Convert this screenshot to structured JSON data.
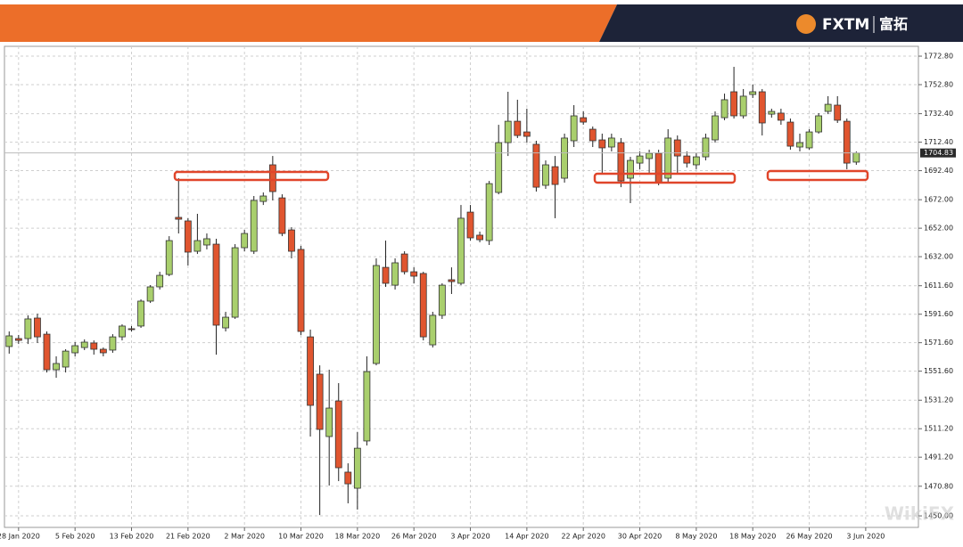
{
  "header": {
    "brand": "FXTM",
    "brand_cn": "富拓"
  },
  "watermark": "WikiFX",
  "chart_data": {
    "type": "candlestick",
    "up_color": "#a9cf6d",
    "down_color": "#e0552f",
    "grid": true,
    "xlim": [
      -0.5,
      96.6
    ],
    "ylim": [
      1441.9,
      1779.7
    ],
    "xticks": [
      {
        "value": 1,
        "label": "28 Jan 2020"
      },
      {
        "value": 7,
        "label": "5 Feb 2020"
      },
      {
        "value": 13,
        "label": "13 Feb 2020"
      },
      {
        "value": 19,
        "label": "21 Feb 2020"
      },
      {
        "value": 25,
        "label": "2 Mar 2020"
      },
      {
        "value": 31,
        "label": "10 Mar 2020"
      },
      {
        "value": 37,
        "label": "18 Mar 2020"
      },
      {
        "value": 43,
        "label": "26 Mar 2020"
      },
      {
        "value": 49,
        "label": "3 Apr 2020"
      },
      {
        "value": 55,
        "label": "14 Apr 2020"
      },
      {
        "value": 61,
        "label": "22 Apr 2020"
      },
      {
        "value": 67,
        "label": "30 Apr 2020"
      },
      {
        "value": 73,
        "label": "8 May 2020"
      },
      {
        "value": 79,
        "label": "18 May 2020"
      },
      {
        "value": 85,
        "label": "26 May 2020"
      },
      {
        "value": 91,
        "label": "3 Jun 2020"
      }
    ],
    "yticks": [
      {
        "value": 1772.8,
        "label": "1772.80"
      },
      {
        "value": 1752.8,
        "label": "1752.80"
      },
      {
        "value": 1732.4,
        "label": "1732.40"
      },
      {
        "value": 1712.4,
        "label": "1712.40"
      },
      {
        "value": 1692.4,
        "label": "1692.40"
      },
      {
        "value": 1672,
        "label": "1672.00"
      },
      {
        "value": 1652,
        "label": "1652.00"
      },
      {
        "value": 1632,
        "label": "1632.00"
      },
      {
        "value": 1611.6,
        "label": "1611.60"
      },
      {
        "value": 1591.6,
        "label": "1591.60"
      },
      {
        "value": 1571.6,
        "label": "1571.60"
      },
      {
        "value": 1551.6,
        "label": "1551.60"
      },
      {
        "value": 1531.2,
        "label": "1531.20"
      },
      {
        "value": 1511.2,
        "label": "1511.20"
      },
      {
        "value": 1491.2,
        "label": "1491.20"
      },
      {
        "value": 1470.8,
        "label": "1470.80"
      },
      {
        "value": 1450,
        "label": "1450.00"
      }
    ],
    "open": [
      1568.9,
      1574.5,
      1574.5,
      1588.9,
      1577.6,
      1552.6,
      1554.5,
      1564.5,
      1568.2,
      1571.4,
      1567.0,
      1566.4,
      1575.7,
      1581.4,
      1583.3,
      1600.8,
      1610.8,
      1619.5,
      1659.6,
      1657.1,
      1635.8,
      1640.2,
      1640.8,
      1582.0,
      1589.5,
      1638.3,
      1635.8,
      1670.8,
      1696.5,
      1673.3,
      1650.8,
      1637.1,
      1575.7,
      1549.5,
      1505.7,
      1530.7,
      1480.7,
      1469.4,
      1502.6,
      1557.0,
      1624.5,
      1612.0,
      1633.9,
      1621.4,
      1620.2,
      1570.1,
      1590.8,
      1615.8,
      1613.3,
      1663.3,
      1647.1,
      1643.3,
      1677.1,
      1712.1,
      1727.1,
      1719.6,
      1710.9,
      1682.1,
      1695.2,
      1687.1,
      1713.4,
      1729.6,
      1721.5,
      1714.0,
      1709.0,
      1712.1,
      1687.1,
      1697.7,
      1700.9,
      1704.6,
      1687.1,
      1714.0,
      1702.7,
      1696.5,
      1702.1,
      1714.0,
      1729.6,
      1747.8,
      1730.9,
      1745.9,
      1747.8,
      1732.1,
      1732.8,
      1726.5,
      1709.0,
      1708.4,
      1719.6,
      1734.0,
      1738.4,
      1727.1,
      1698.4
    ],
    "high": [
      1579.5,
      1577.0,
      1590.8,
      1592.0,
      1579.5,
      1562.0,
      1567.0,
      1572.0,
      1573.9,
      1573.2,
      1568.2,
      1577.6,
      1584.5,
      1583.3,
      1602.0,
      1612.0,
      1621.4,
      1646.4,
      1687.1,
      1659.0,
      1662.1,
      1648.3,
      1644.6,
      1593.3,
      1640.8,
      1650.8,
      1674.6,
      1677.1,
      1702.7,
      1675.8,
      1652.7,
      1639.6,
      1580.8,
      1555.7,
      1552.6,
      1543.2,
      1486.9,
      1508.8,
      1562.0,
      1630.8,
      1643.3,
      1630.8,
      1635.8,
      1624.5,
      1621.4,
      1593.3,
      1613.3,
      1624.5,
      1668.3,
      1668.3,
      1649.6,
      1685.2,
      1724.6,
      1747.8,
      1742.2,
      1735.9,
      1713.4,
      1699.6,
      1702.7,
      1718.4,
      1738.4,
      1734.0,
      1723.4,
      1718.4,
      1718.4,
      1715.3,
      1702.1,
      1705.9,
      1707.1,
      1707.1,
      1721.5,
      1717.1,
      1705.9,
      1704.6,
      1718.4,
      1734.0,
      1746.5,
      1765.3,
      1749.7,
      1752.8,
      1749.7,
      1735.9,
      1735.9,
      1729.0,
      1718.4,
      1721.5,
      1732.8,
      1744.7,
      1744.7,
      1729.0,
      1705.9
    ],
    "low": [
      1563.9,
      1570.7,
      1570.7,
      1571.4,
      1550.7,
      1547.0,
      1550.7,
      1562.0,
      1566.4,
      1563.2,
      1562.0,
      1564.5,
      1573.2,
      1579.5,
      1582.0,
      1599.5,
      1608.9,
      1618.3,
      1648.3,
      1625.8,
      1633.9,
      1637.1,
      1563.2,
      1579.5,
      1588.3,
      1635.8,
      1633.9,
      1668.3,
      1671.5,
      1646.4,
      1630.8,
      1577.0,
      1505.7,
      1450.6,
      1471.3,
      1474.4,
      1458.8,
      1454.4,
      1499.4,
      1555.7,
      1610.8,
      1608.9,
      1619.5,
      1613.3,
      1573.2,
      1568.2,
      1588.3,
      1605.8,
      1612.0,
      1643.3,
      1642.1,
      1640.2,
      1675.8,
      1702.7,
      1715.3,
      1712.1,
      1677.7,
      1679.6,
      1659.0,
      1684.0,
      1709.0,
      1724.6,
      1709.0,
      1690.2,
      1705.9,
      1680.8,
      1669.6,
      1693.4,
      1690.2,
      1682.1,
      1684.0,
      1690.2,
      1694.6,
      1693.4,
      1699.6,
      1712.1,
      1727.8,
      1729.0,
      1729.0,
      1743.4,
      1717.1,
      1729.6,
      1724.6,
      1707.1,
      1705.9,
      1707.1,
      1718.4,
      1732.1,
      1725.9,
      1693.4,
      1696.5
    ],
    "close": [
      1576.4,
      1573.2,
      1588.3,
      1575.7,
      1552.6,
      1557.0,
      1565.7,
      1569.5,
      1572.0,
      1567.0,
      1564.5,
      1575.7,
      1583.3,
      1580.8,
      1600.8,
      1610.8,
      1618.9,
      1643.3,
      1658.3,
      1635.2,
      1643.3,
      1644.6,
      1583.9,
      1589.5,
      1638.3,
      1648.3,
      1671.5,
      1674.6,
      1677.7,
      1648.3,
      1635.8,
      1579.5,
      1527.6,
      1510.7,
      1525.7,
      1483.8,
      1472.5,
      1497.5,
      1551.3,
      1625.8,
      1613.3,
      1627.7,
      1621.4,
      1618.3,
      1575.7,
      1590.8,
      1612.0,
      1614.5,
      1659.0,
      1645.2,
      1643.9,
      1683.3,
      1712.1,
      1727.1,
      1717.1,
      1716.5,
      1680.8,
      1696.5,
      1682.7,
      1715.3,
      1730.9,
      1726.5,
      1713.4,
      1708.4,
      1715.3,
      1685.2,
      1699.6,
      1702.7,
      1704.6,
      1684.0,
      1715.3,
      1702.7,
      1697.7,
      1702.1,
      1715.3,
      1730.9,
      1742.2,
      1730.9,
      1744.7,
      1747.8,
      1725.9,
      1734.0,
      1727.8,
      1709.6,
      1712.1,
      1719.6,
      1730.9,
      1739.0,
      1727.8,
      1697.7,
      1704.83
    ]
  }
}
